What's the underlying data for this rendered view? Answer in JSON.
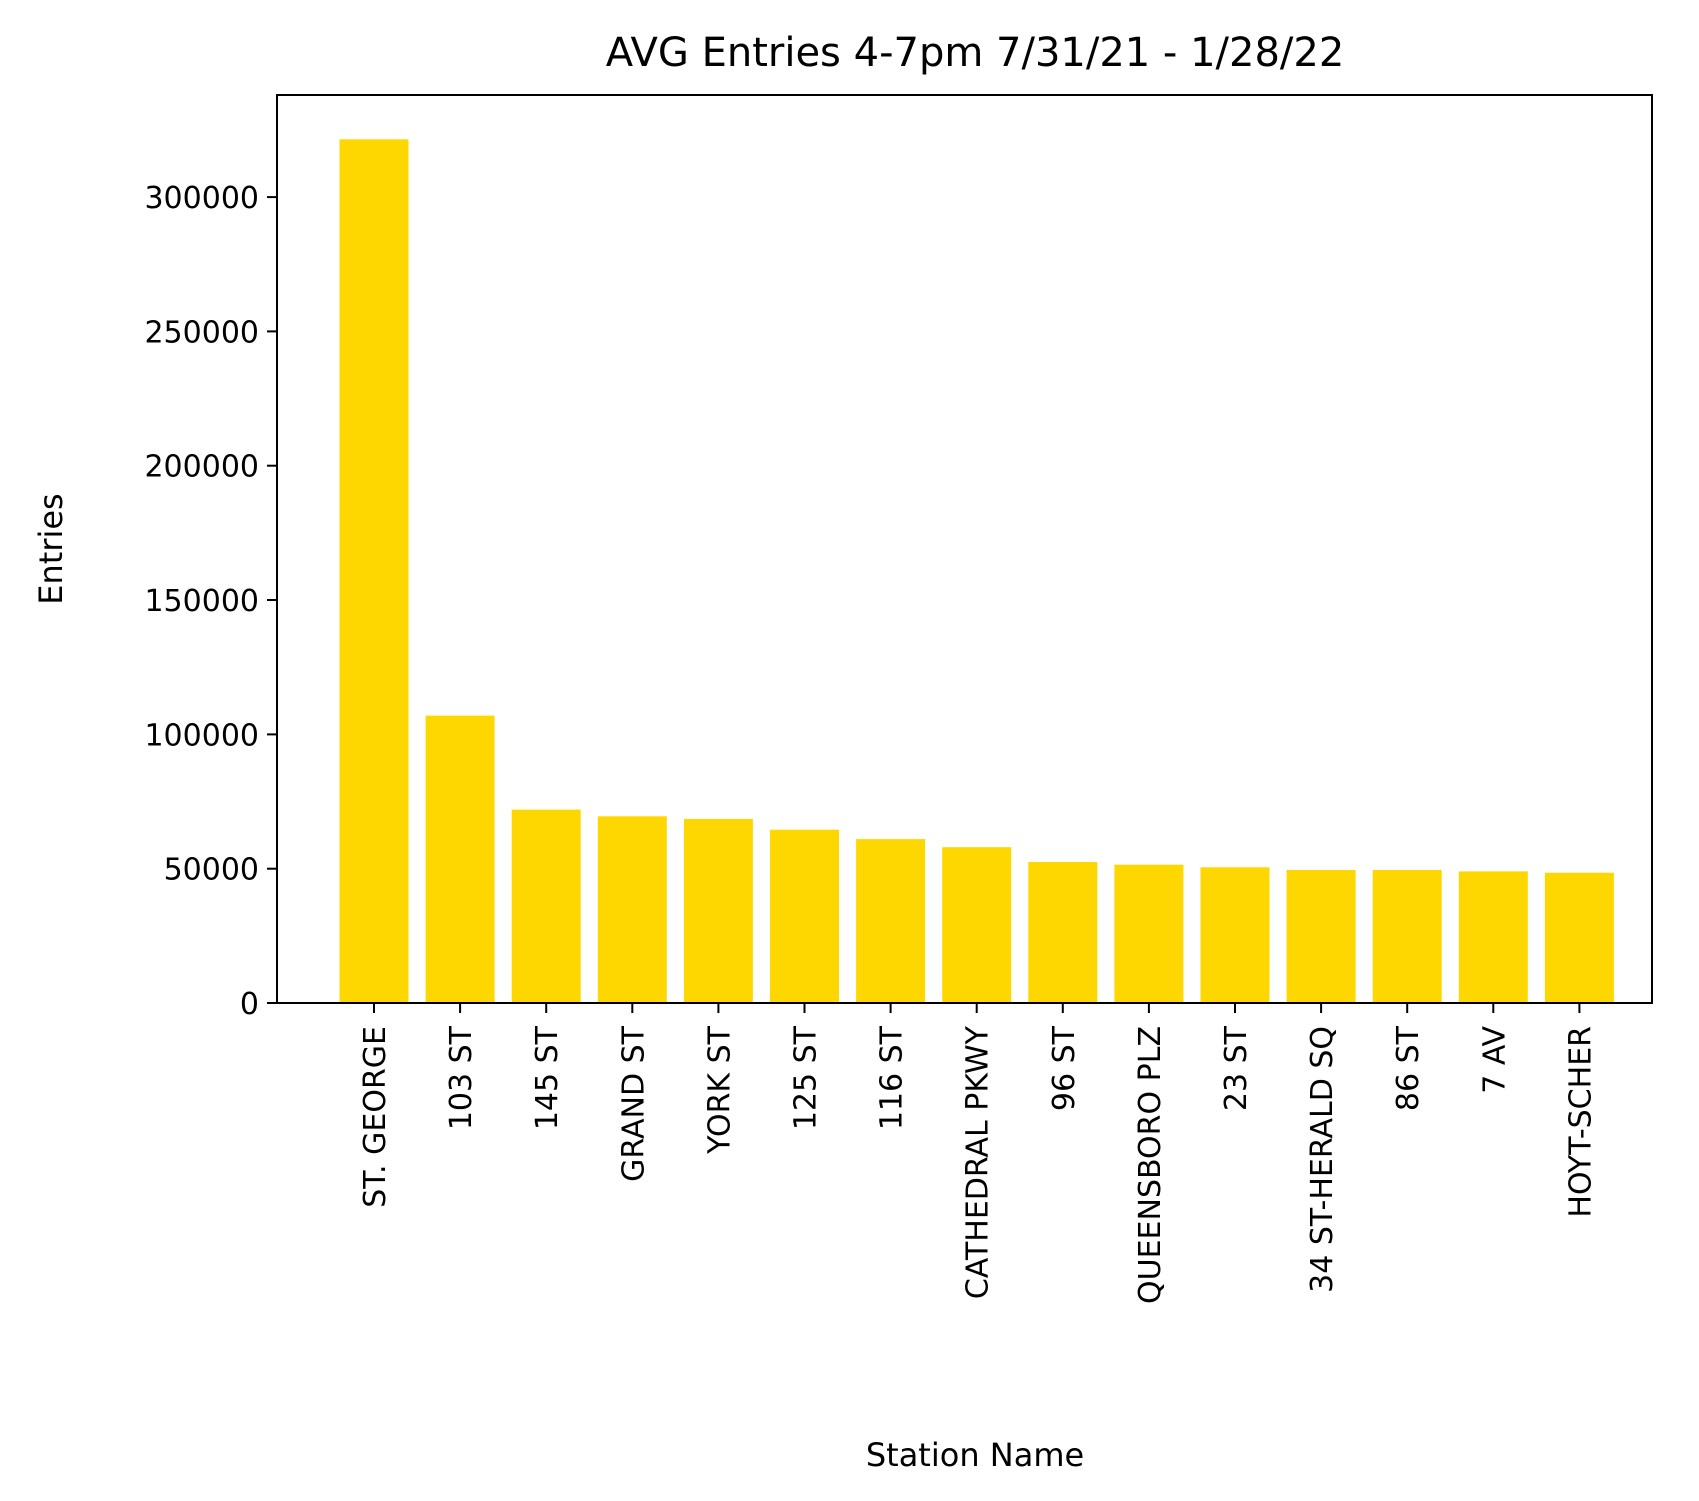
{
  "chart_data": {
    "type": "bar",
    "title": "AVG Entries 4-7pm 7/31/21 - 1/28/22",
    "xlabel": "Station Name",
    "ylabel": "Entries",
    "categories": [
      "ST. GEORGE",
      "103 ST",
      "145 ST",
      "GRAND ST",
      "YORK ST",
      "125 ST",
      "116 ST",
      "CATHEDRAL PKWY",
      "96 ST",
      "QUEENSBORO PLZ",
      "23 ST",
      "34 ST-HERALD SQ",
      "86 ST",
      "7 AV",
      "HOYT-SCHER"
    ],
    "values": [
      321500,
      107000,
      72000,
      69500,
      68500,
      64500,
      61000,
      58000,
      52500,
      51500,
      50500,
      49500,
      49500,
      49000,
      48500
    ],
    "yticks": [
      0,
      50000,
      100000,
      150000,
      200000,
      250000,
      300000
    ],
    "ylim": [
      0,
      338000
    ],
    "bar_color": "#FFD700",
    "grid": false,
    "legend": false
  }
}
